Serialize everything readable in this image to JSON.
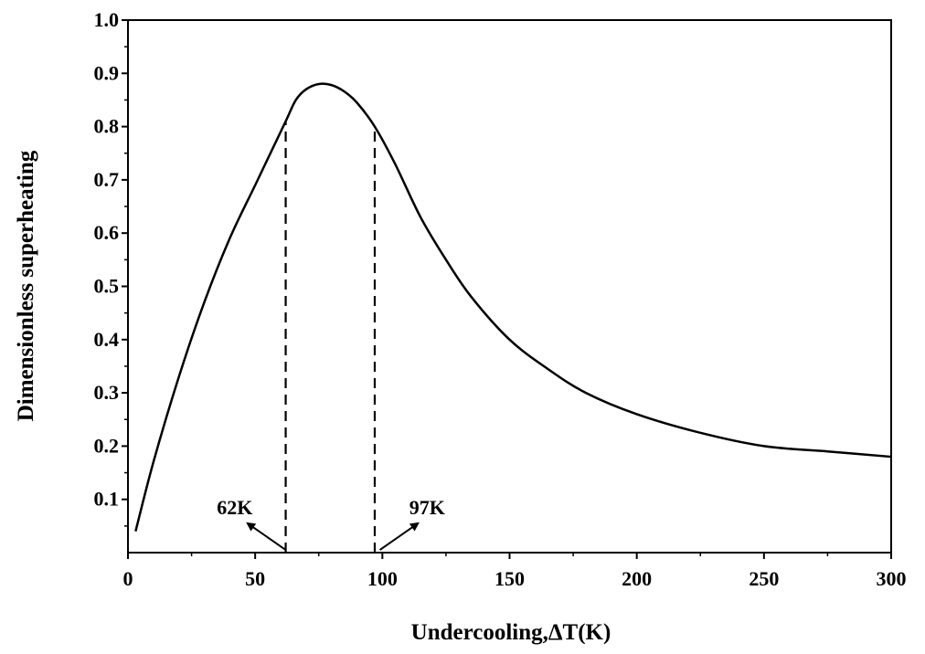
{
  "chart_data": {
    "type": "line",
    "title": "",
    "xlabel": "Undercooling,ΔT(K)",
    "ylabel": "Dimensionless  superheating",
    "xlim": [
      0,
      300
    ],
    "ylim": [
      0,
      1.0
    ],
    "x_ticks": [
      "0",
      "50",
      "100",
      "150",
      "200",
      "250",
      "300"
    ],
    "y_ticks": [
      "0.1",
      "0.2",
      "0.3",
      "0.4",
      "0.5",
      "0.6",
      "0.7",
      "0.8",
      "0.9",
      "1.0"
    ],
    "grid": false,
    "legend": "none",
    "line_color": "#000000",
    "series": [
      {
        "x": [
          3,
          10,
          20,
          30,
          40,
          50,
          55,
          62,
          66,
          70,
          75,
          80,
          85,
          90,
          97,
          105,
          115,
          125,
          135,
          150,
          165,
          180,
          200,
          225,
          250,
          275,
          300
        ],
        "y": [
          0.04,
          0.17,
          0.33,
          0.47,
          0.59,
          0.69,
          0.74,
          0.81,
          0.85,
          0.87,
          0.88,
          0.878,
          0.866,
          0.845,
          0.8,
          0.73,
          0.63,
          0.55,
          0.48,
          0.4,
          0.345,
          0.3,
          0.26,
          0.225,
          0.2,
          0.19,
          0.18
        ]
      }
    ],
    "reference_lines": [
      {
        "x": 62,
        "y_top": 0.81,
        "style": "dashed"
      },
      {
        "x": 97,
        "y_top": 0.8,
        "style": "dashed"
      }
    ],
    "annotations": [
      {
        "text": "62K",
        "arrow_from": [
          62,
          0.005
        ],
        "arrow_to": [
          47,
          0.055
        ]
      },
      {
        "text": "97K",
        "arrow_from": [
          99,
          0.005
        ],
        "arrow_to": [
          114,
          0.055
        ]
      }
    ]
  }
}
